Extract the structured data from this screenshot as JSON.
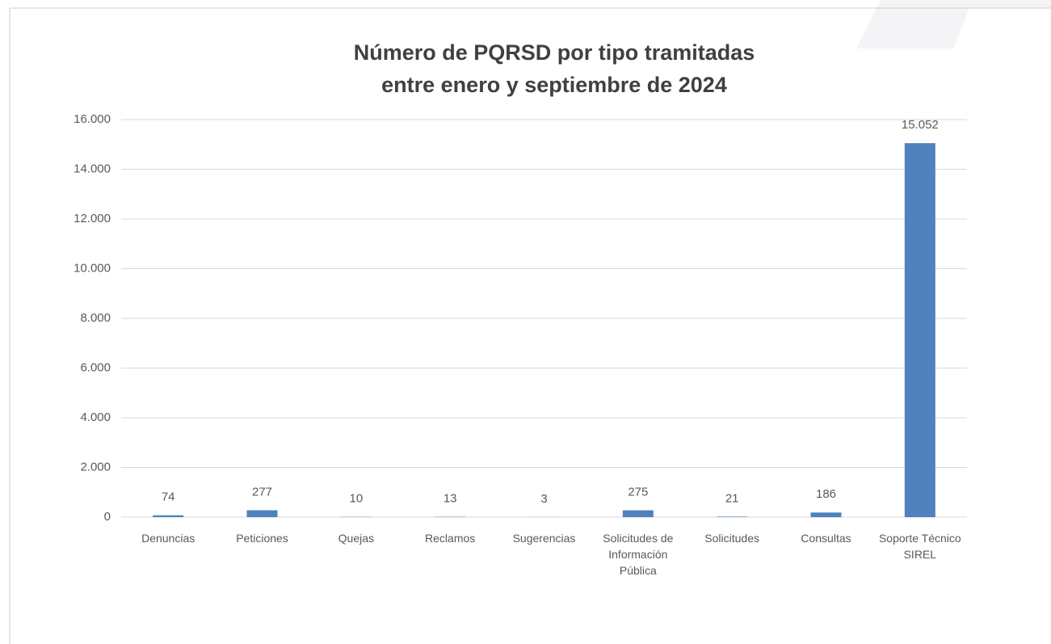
{
  "chart_data": {
    "type": "bar",
    "title": [
      "Número de PQRSD por tipo tramitadas",
      "entre enero y septiembre de 2024"
    ],
    "categories": [
      "Denuncias",
      "Peticiones",
      "Quejas",
      "Reclamos",
      "Sugerencias",
      "Solicitudes de Información Pública",
      "Solicitudes",
      "Consultas",
      "Soporte Técnico SIREL"
    ],
    "values": [
      74,
      277,
      10,
      13,
      3,
      275,
      21,
      186,
      15052
    ],
    "value_labels": [
      "74",
      "277",
      "10",
      "13",
      "3",
      "275",
      "21",
      "186",
      "15.052"
    ],
    "color": "#4f81bd",
    "ylim": [
      0,
      16000
    ],
    "yticks": [
      0,
      {
        "value": 2000,
        "label": "2.000"
      },
      {
        "value": 4000,
        "label": "4.000"
      },
      {
        "value": 6000,
        "label": "6.000"
      },
      {
        "value": 8000,
        "label": "8.000"
      },
      {
        "value": 10000,
        "label": "10.000"
      },
      {
        "value": 12000,
        "label": "12.000"
      },
      {
        "value": 14000,
        "label": "14.000"
      },
      {
        "value": 16000,
        "label": "16.000"
      }
    ],
    "grid": true
  }
}
